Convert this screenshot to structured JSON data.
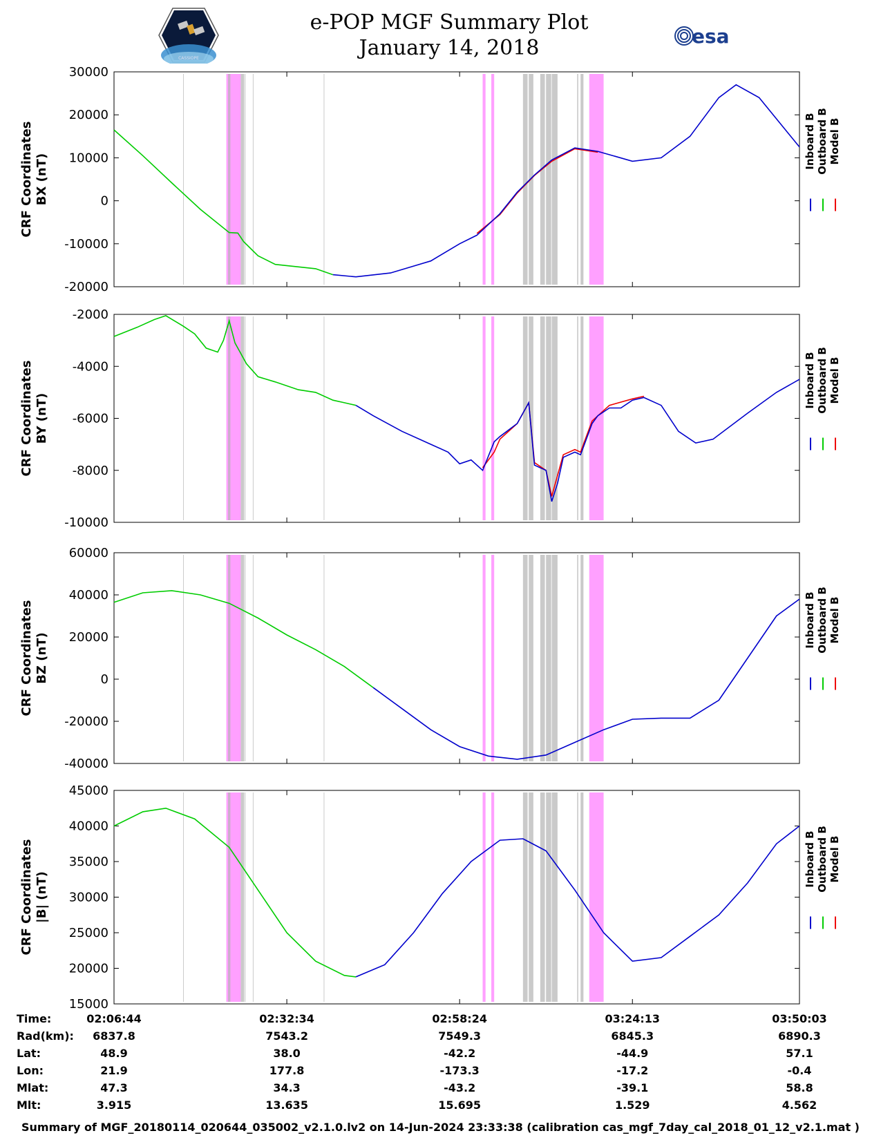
{
  "title": {
    "line1": "e-POP MGF Summary Plot",
    "line2": "January 14, 2018"
  },
  "logos": {
    "left": "cassiope-mission-logo",
    "left_caption": "CASSIOPE",
    "right_text": "esa"
  },
  "colors": {
    "inboard": "#0000cc",
    "outboard": "#00cc00",
    "model": "#ee0000",
    "magenta": "#ff80ff",
    "gray": "#b4b4b4"
  },
  "legend": [
    "Inboard B",
    "Outboard B",
    "Model B"
  ],
  "chart_data": [
    {
      "type": "line",
      "ylabel": "CRF Coordinates\nBX (nT)",
      "ylim": [
        -20000,
        30000
      ],
      "yticks": [
        30000,
        20000,
        10000,
        0,
        -10000,
        -20000
      ],
      "yticklabels": [
        "30000",
        "20000",
        "10000",
        "0",
        "-10000",
        "-20000"
      ],
      "green": [
        [
          0,
          16500
        ],
        [
          5,
          10500
        ],
        [
          10,
          4200
        ],
        [
          15,
          -2000
        ],
        [
          20,
          -7400
        ],
        [
          21.5,
          -7500
        ],
        [
          22.5,
          -9500
        ],
        [
          25,
          -12800
        ],
        [
          28,
          -14800
        ],
        [
          35,
          -15800
        ],
        [
          38,
          -17200
        ]
      ],
      "blue": [
        [
          38,
          -17200
        ],
        [
          42,
          -17700
        ],
        [
          48,
          -16800
        ],
        [
          55,
          -14000
        ],
        [
          60,
          -10000
        ],
        [
          63,
          -8000
        ],
        [
          67,
          -3000
        ],
        [
          70,
          2000
        ],
        [
          73,
          6000
        ],
        [
          76,
          9500
        ],
        [
          80,
          12300
        ],
        [
          84,
          11500
        ],
        [
          90,
          9200
        ],
        [
          95,
          10000
        ],
        [
          100,
          15000
        ],
        [
          105,
          24000
        ],
        [
          108,
          27000
        ],
        [
          112,
          24000
        ],
        [
          119,
          12500
        ]
      ],
      "red": [
        [
          63,
          -7600
        ],
        [
          67,
          -3200
        ],
        [
          70,
          1800
        ],
        [
          73,
          5900
        ],
        [
          76,
          9200
        ],
        [
          80,
          12100
        ],
        [
          84,
          11300
        ]
      ]
    },
    {
      "type": "line",
      "ylabel": "CRF Coordinates\nBY (nT)",
      "ylim": [
        -10000,
        -2000
      ],
      "yticks": [
        -2000,
        -4000,
        -6000,
        -8000,
        -10000
      ],
      "yticklabels": [
        "-2000",
        "-4000",
        "-6000",
        "-8000",
        "-10000"
      ],
      "green": [
        [
          0,
          -2850
        ],
        [
          4,
          -2500
        ],
        [
          7,
          -2200
        ],
        [
          9,
          -2050
        ],
        [
          12,
          -2450
        ],
        [
          14,
          -2750
        ],
        [
          16,
          -3300
        ],
        [
          18,
          -3450
        ],
        [
          19,
          -3000
        ],
        [
          20,
          -2250
        ],
        [
          21,
          -3100
        ],
        [
          23,
          -3900
        ],
        [
          25,
          -4400
        ],
        [
          28,
          -4600
        ],
        [
          32,
          -4900
        ],
        [
          35,
          -5000
        ],
        [
          38,
          -5300
        ],
        [
          40,
          -5400
        ],
        [
          42,
          -5500
        ]
      ],
      "blue": [
        [
          42,
          -5500
        ],
        [
          45,
          -5900
        ],
        [
          50,
          -6500
        ],
        [
          55,
          -7000
        ],
        [
          58,
          -7300
        ],
        [
          60,
          -7750
        ],
        [
          62,
          -7600
        ],
        [
          64,
          -8000
        ],
        [
          66,
          -6900
        ],
        [
          67,
          -6700
        ],
        [
          70,
          -6200
        ],
        [
          72,
          -5400
        ],
        [
          73,
          -7800
        ],
        [
          75,
          -8000
        ],
        [
          76,
          -9200
        ],
        [
          77,
          -8500
        ],
        [
          78,
          -7500
        ],
        [
          80,
          -7300
        ],
        [
          81,
          -7400
        ],
        [
          83,
          -6200
        ],
        [
          84,
          -5900
        ],
        [
          86,
          -5600
        ],
        [
          88,
          -5600
        ],
        [
          90,
          -5300
        ],
        [
          92,
          -5200
        ],
        [
          95,
          -5500
        ],
        [
          98,
          -6500
        ],
        [
          101,
          -6950
        ],
        [
          104,
          -6800
        ],
        [
          110,
          -5800
        ],
        [
          115,
          -5000
        ],
        [
          119,
          -4500
        ]
      ],
      "red": [
        [
          64,
          -7900
        ],
        [
          66,
          -7300
        ],
        [
          67,
          -6800
        ],
        [
          70,
          -6200
        ],
        [
          72,
          -5400
        ],
        [
          73,
          -7700
        ],
        [
          75,
          -8000
        ],
        [
          76,
          -9000
        ],
        [
          78,
          -7400
        ],
        [
          80,
          -7200
        ],
        [
          81,
          -7300
        ],
        [
          83,
          -6100
        ],
        [
          86,
          -5500
        ],
        [
          90,
          -5250
        ],
        [
          92,
          -5150
        ]
      ]
    },
    {
      "type": "line",
      "ylabel": "CRF Coordinates\nBZ (nT)",
      "ylim": [
        -40000,
        60000
      ],
      "yticks": [
        60000,
        40000,
        20000,
        0,
        -20000,
        -40000
      ],
      "yticklabels": [
        "60000",
        "40000",
        "20000",
        "0",
        "-20000",
        "-40000"
      ],
      "green": [
        [
          0,
          36500
        ],
        [
          5,
          41000
        ],
        [
          10,
          42000
        ],
        [
          15,
          40000
        ],
        [
          20,
          36000
        ],
        [
          25,
          29000
        ],
        [
          30,
          21000
        ],
        [
          35,
          14000
        ],
        [
          40,
          6000
        ],
        [
          45,
          -4000
        ]
      ],
      "blue": [
        [
          45,
          -4000
        ],
        [
          50,
          -14000
        ],
        [
          55,
          -24000
        ],
        [
          60,
          -32000
        ],
        [
          65,
          -36500
        ],
        [
          70,
          -38000
        ],
        [
          75,
          -36000
        ],
        [
          80,
          -30000
        ],
        [
          85,
          -24000
        ],
        [
          90,
          -19000
        ],
        [
          95,
          -18500
        ],
        [
          100,
          -18500
        ],
        [
          105,
          -10000
        ],
        [
          110,
          10000
        ],
        [
          115,
          30000
        ],
        [
          119,
          38000
        ]
      ],
      "red": []
    },
    {
      "type": "line",
      "ylabel": "CRF Coordinates\n|B| (nT)",
      "ylim": [
        15000,
        45000
      ],
      "yticks": [
        45000,
        40000,
        35000,
        30000,
        25000,
        20000,
        15000
      ],
      "yticklabels": [
        "45000",
        "40000",
        "35000",
        "30000",
        "25000",
        "20000",
        "15000"
      ],
      "green": [
        [
          0,
          40000
        ],
        [
          5,
          42000
        ],
        [
          9,
          42500
        ],
        [
          14,
          41000
        ],
        [
          20,
          37000
        ],
        [
          25,
          31000
        ],
        [
          30,
          25000
        ],
        [
          35,
          21000
        ],
        [
          40,
          19000
        ],
        [
          42,
          18800
        ]
      ],
      "blue": [
        [
          42,
          18800
        ],
        [
          47,
          20500
        ],
        [
          52,
          25000
        ],
        [
          57,
          30500
        ],
        [
          62,
          35000
        ],
        [
          67,
          38000
        ],
        [
          71,
          38200
        ],
        [
          75,
          36500
        ],
        [
          80,
          31000
        ],
        [
          85,
          25000
        ],
        [
          90,
          21000
        ],
        [
          95,
          21500
        ],
        [
          100,
          24500
        ],
        [
          105,
          27500
        ],
        [
          110,
          32000
        ],
        [
          115,
          37500
        ],
        [
          119,
          40000
        ]
      ],
      "red": []
    }
  ],
  "x_axis": {
    "xlim": [
      0,
      119
    ],
    "ticks": [
      30,
      60,
      90
    ]
  },
  "shading": {
    "magenta": [
      [
        19.5,
        22
      ],
      [
        64,
        64.5
      ],
      [
        65.5,
        66
      ],
      [
        82.5,
        85
      ]
    ],
    "gray": [
      [
        12,
        12.1
      ],
      [
        19.8,
        20.2
      ],
      [
        22,
        22.6
      ],
      [
        22.7,
        22.8
      ],
      [
        24.1,
        24.2
      ],
      [
        36.4,
        36.5
      ],
      [
        71,
        71.8
      ],
      [
        72,
        72.8
      ],
      [
        74,
        74.8
      ],
      [
        75,
        75.9
      ],
      [
        76,
        77
      ],
      [
        80.4,
        80.6
      ],
      [
        81,
        81.5
      ]
    ]
  },
  "info": {
    "labels": [
      "Time:",
      "Rad(km):",
      "Lat:",
      "Lon:",
      "Mlat:",
      "Mlt:"
    ],
    "columns": [
      [
        "02:06:44",
        "6837.8",
        "48.9",
        "21.9",
        "47.3",
        "3.915"
      ],
      [
        "02:32:34",
        "7543.2",
        "38.0",
        "177.8",
        "34.3",
        "13.635"
      ],
      [
        "02:58:24",
        "7549.3",
        "-42.2",
        "-173.3",
        "-43.2",
        "15.695"
      ],
      [
        "03:24:13",
        "6845.3",
        "-44.9",
        "-17.2",
        "-39.1",
        "1.529"
      ],
      [
        "03:50:03",
        "6890.3",
        "57.1",
        "-0.4",
        "58.8",
        "4.562"
      ]
    ]
  },
  "footer": "Summary of MGF_20180114_020644_035002_v2.1.0.lv2 on 14-Jun-2024 23:33:38 (calibration cas_mgf_7day_cal_2018_01_12_v2.1.mat )"
}
